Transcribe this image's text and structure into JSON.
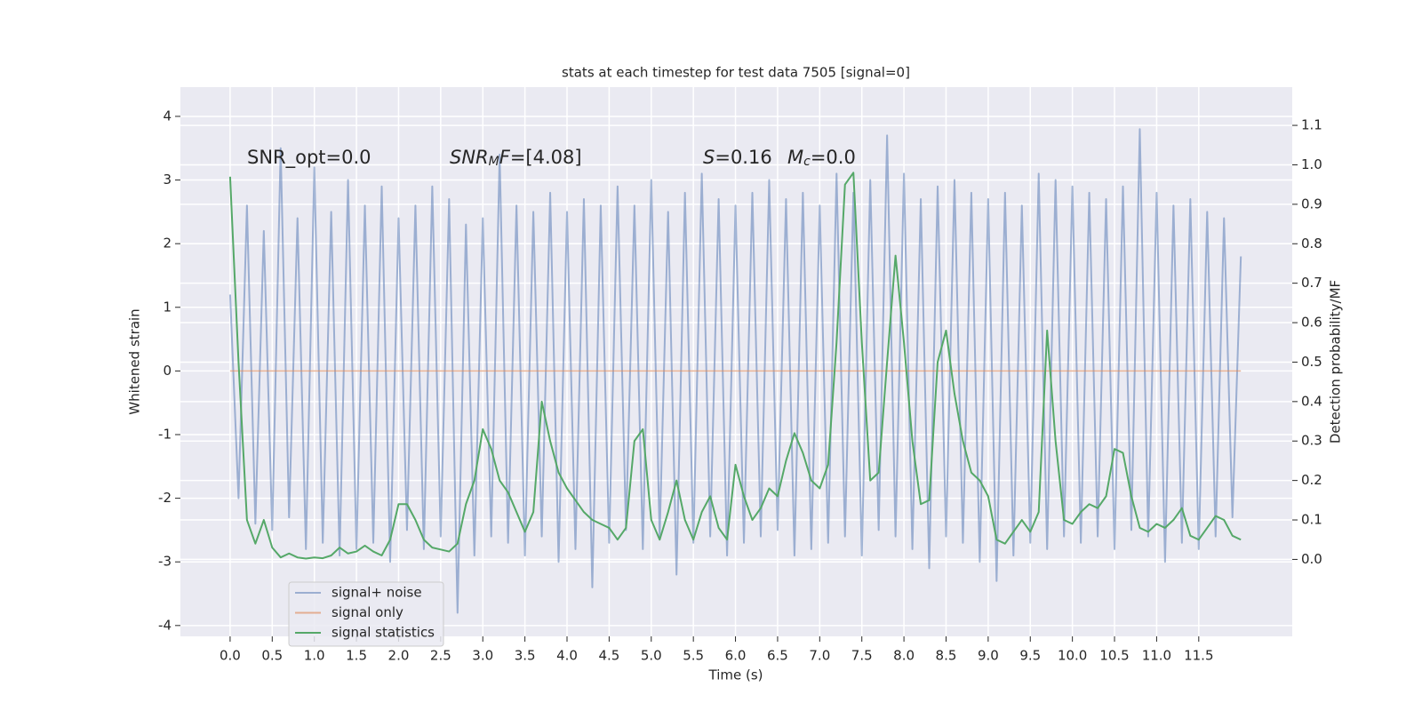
{
  "chart_data": {
    "type": "line",
    "title": "stats at each timestep for test data 7505 [signal=0]",
    "xlabel": "Time (s)",
    "ylabel": "Whitened strain",
    "y2label": "Detection probability/MF",
    "x": [
      0.0,
      0.1,
      0.2,
      0.3,
      0.4,
      0.5,
      0.6,
      0.7,
      0.8,
      0.9,
      1.0,
      1.1,
      1.2,
      1.3,
      1.4,
      1.5,
      1.6,
      1.7,
      1.8,
      1.9,
      2.0,
      2.1,
      2.2,
      2.3,
      2.4,
      2.5,
      2.6,
      2.7,
      2.8,
      2.9,
      3.0,
      3.1,
      3.2,
      3.3,
      3.4,
      3.5,
      3.6,
      3.7,
      3.8,
      3.9,
      4.0,
      4.1,
      4.2,
      4.3,
      4.4,
      4.5,
      4.6,
      4.7,
      4.8,
      4.9,
      5.0,
      5.1,
      5.2,
      5.3,
      5.4,
      5.5,
      5.6,
      5.7,
      5.8,
      5.9,
      6.0,
      6.1,
      6.2,
      6.3,
      6.4,
      6.5,
      6.6,
      6.7,
      6.8,
      6.9,
      7.0,
      7.1,
      7.2,
      7.3,
      7.4,
      7.5,
      7.6,
      7.7,
      7.8,
      7.9,
      8.0,
      8.1,
      8.2,
      8.3,
      8.4,
      8.5,
      8.6,
      8.7,
      8.8,
      8.9,
      9.0,
      9.1,
      9.2,
      9.3,
      9.4,
      9.5,
      9.6,
      9.7,
      9.8,
      9.9,
      10.0,
      10.1,
      10.2,
      10.3,
      10.4,
      10.5,
      10.6,
      10.7,
      10.8,
      10.9,
      11.0,
      11.1,
      11.2,
      11.3,
      11.4,
      11.5,
      11.6,
      11.7,
      11.8,
      11.9,
      12.0
    ],
    "series": [
      {
        "name": "signal+ noise",
        "color": "#4c72b0",
        "values": [
          1.2,
          -2.0,
          2.6,
          -2.4,
          2.2,
          -2.5,
          3.5,
          -2.3,
          2.4,
          -2.8,
          3.2,
          -2.7,
          2.5,
          -2.9,
          3.0,
          -2.8,
          2.6,
          -2.7,
          2.9,
          -3.0,
          2.4,
          -2.5,
          2.6,
          -2.8,
          2.9,
          -2.6,
          2.7,
          -3.8,
          2.3,
          -2.9,
          2.4,
          -2.6,
          3.4,
          -2.7,
          2.6,
          -2.9,
          2.5,
          -2.6,
          2.8,
          -3.0,
          2.5,
          -2.8,
          2.7,
          -3.4,
          2.6,
          -2.7,
          2.9,
          -2.5,
          2.6,
          -2.8,
          3.0,
          -2.6,
          2.5,
          -3.2,
          2.8,
          -2.7,
          3.1,
          -2.6,
          2.7,
          -2.9,
          2.6,
          -2.7,
          2.8,
          -2.6,
          3.0,
          -2.5,
          2.7,
          -2.9,
          2.8,
          -2.8,
          2.6,
          -2.7,
          3.1,
          -2.6,
          2.8,
          -2.9,
          3.0,
          -2.5,
          3.7,
          -2.6,
          3.1,
          -2.8,
          2.7,
          -3.1,
          2.9,
          -2.6,
          3.0,
          -2.7,
          2.8,
          -3.0,
          2.7,
          -3.3,
          2.8,
          -2.9,
          2.6,
          -2.7,
          3.1,
          -2.8,
          3.0,
          -2.6,
          2.9,
          -2.7,
          2.8,
          -2.6,
          2.7,
          -2.8,
          2.9,
          -2.5,
          3.8,
          -2.6,
          2.8,
          -3.0,
          2.6,
          -2.7,
          2.7,
          -2.8,
          2.5,
          -2.6,
          2.4,
          -2.3,
          1.8
        ]
      },
      {
        "name": "signal only",
        "color": "#dd8452",
        "values": [
          0,
          0,
          0,
          0,
          0,
          0,
          0,
          0,
          0,
          0,
          0,
          0,
          0,
          0,
          0,
          0,
          0,
          0,
          0,
          0,
          0,
          0,
          0,
          0,
          0,
          0,
          0,
          0,
          0,
          0,
          0,
          0,
          0,
          0,
          0,
          0,
          0,
          0,
          0,
          0,
          0,
          0,
          0,
          0,
          0,
          0,
          0,
          0,
          0,
          0,
          0,
          0,
          0,
          0,
          0,
          0,
          0,
          0,
          0,
          0,
          0,
          0,
          0,
          0,
          0,
          0,
          0,
          0,
          0,
          0,
          0,
          0,
          0,
          0,
          0,
          0,
          0,
          0,
          0,
          0,
          0,
          0,
          0,
          0,
          0,
          0,
          0,
          0,
          0,
          0,
          0,
          0,
          0,
          0,
          0,
          0,
          0,
          0,
          0,
          0,
          0,
          0,
          0,
          0,
          0,
          0,
          0,
          0,
          0,
          0,
          0,
          0,
          0,
          0,
          0,
          0,
          0,
          0,
          0,
          0,
          0
        ]
      },
      {
        "name": "signal statistics",
        "color": "#55a868",
        "axis": "y2",
        "values": [
          0.97,
          0.5,
          0.1,
          0.04,
          0.1,
          0.03,
          0.005,
          0.015,
          0.005,
          0.002,
          0.005,
          0.003,
          0.01,
          0.03,
          0.015,
          0.02,
          0.035,
          0.02,
          0.01,
          0.05,
          0.14,
          0.14,
          0.1,
          0.05,
          0.03,
          0.025,
          0.02,
          0.04,
          0.14,
          0.2,
          0.33,
          0.28,
          0.2,
          0.17,
          0.12,
          0.07,
          0.12,
          0.4,
          0.3,
          0.22,
          0.18,
          0.15,
          0.12,
          0.1,
          0.09,
          0.08,
          0.05,
          0.08,
          0.3,
          0.33,
          0.1,
          0.05,
          0.12,
          0.2,
          0.1,
          0.05,
          0.12,
          0.16,
          0.08,
          0.05,
          0.24,
          0.16,
          0.1,
          0.13,
          0.18,
          0.16,
          0.25,
          0.32,
          0.27,
          0.2,
          0.18,
          0.24,
          0.55,
          0.95,
          0.98,
          0.55,
          0.2,
          0.22,
          0.5,
          0.77,
          0.55,
          0.3,
          0.14,
          0.15,
          0.5,
          0.58,
          0.42,
          0.3,
          0.22,
          0.2,
          0.16,
          0.05,
          0.04,
          0.07,
          0.1,
          0.07,
          0.12,
          0.58,
          0.3,
          0.1,
          0.09,
          0.12,
          0.14,
          0.13,
          0.16,
          0.28,
          0.27,
          0.16,
          0.08,
          0.07,
          0.09,
          0.08,
          0.1,
          0.13,
          0.06,
          0.05,
          0.08,
          0.11,
          0.1,
          0.06,
          0.05
        ]
      }
    ],
    "xlim": [
      -0.59,
      12.61
    ],
    "xticks": [
      {
        "value": 0,
        "label": "0.0"
      },
      0.5,
      {
        "value": 1,
        "label": "1.0"
      },
      1.5,
      {
        "value": 2,
        "label": "2.0"
      },
      2.5,
      {
        "value": 3,
        "label": "3.0"
      },
      3.5,
      {
        "value": 4,
        "label": "4.0"
      },
      4.5,
      {
        "value": 5,
        "label": "5.0"
      },
      5.5,
      {
        "value": 6,
        "label": "6.0"
      },
      6.5,
      {
        "value": 7,
        "label": "7.0"
      },
      7.5,
      {
        "value": 8,
        "label": "8.0"
      },
      8.5,
      {
        "value": 9,
        "label": "9.0"
      },
      9.5,
      {
        "value": 10,
        "label": "10.0"
      },
      10.5,
      {
        "value": 11,
        "label": "11.0"
      },
      11.5
    ],
    "ylim": [
      -4.17,
      4.46
    ],
    "yticks": [
      -4,
      -3,
      -2,
      -1,
      0,
      1,
      2,
      3,
      4
    ],
    "y2lim": [
      -0.195,
      1.197
    ],
    "y2ticks": [
      {
        "value": 0,
        "label": "0.0"
      },
      0.1,
      0.2,
      0.3,
      0.4,
      0.5,
      0.6,
      0.7,
      0.8,
      0.9,
      {
        "value": 1,
        "label": "1.0"
      },
      1.1
    ],
    "grid": true,
    "annotations": [
      {
        "parts": [
          {
            "text": "SNR_opt=0.0"
          }
        ]
      },
      {
        "parts": [
          {
            "text": "SNR",
            "style": "italic"
          },
          {
            "text": "M",
            "style": "sub"
          },
          {
            "text": "F",
            "style": "italic"
          },
          {
            "text": "=[4.08]"
          }
        ]
      },
      {
        "parts": [
          {
            "text": "S",
            "style": "italic"
          },
          {
            "text": "=0.16"
          }
        ]
      },
      {
        "parts": [
          {
            "text": "M",
            "style": "italic"
          },
          {
            "text": "c",
            "style": "sub"
          },
          {
            "text": "=0.0"
          }
        ]
      }
    ]
  }
}
